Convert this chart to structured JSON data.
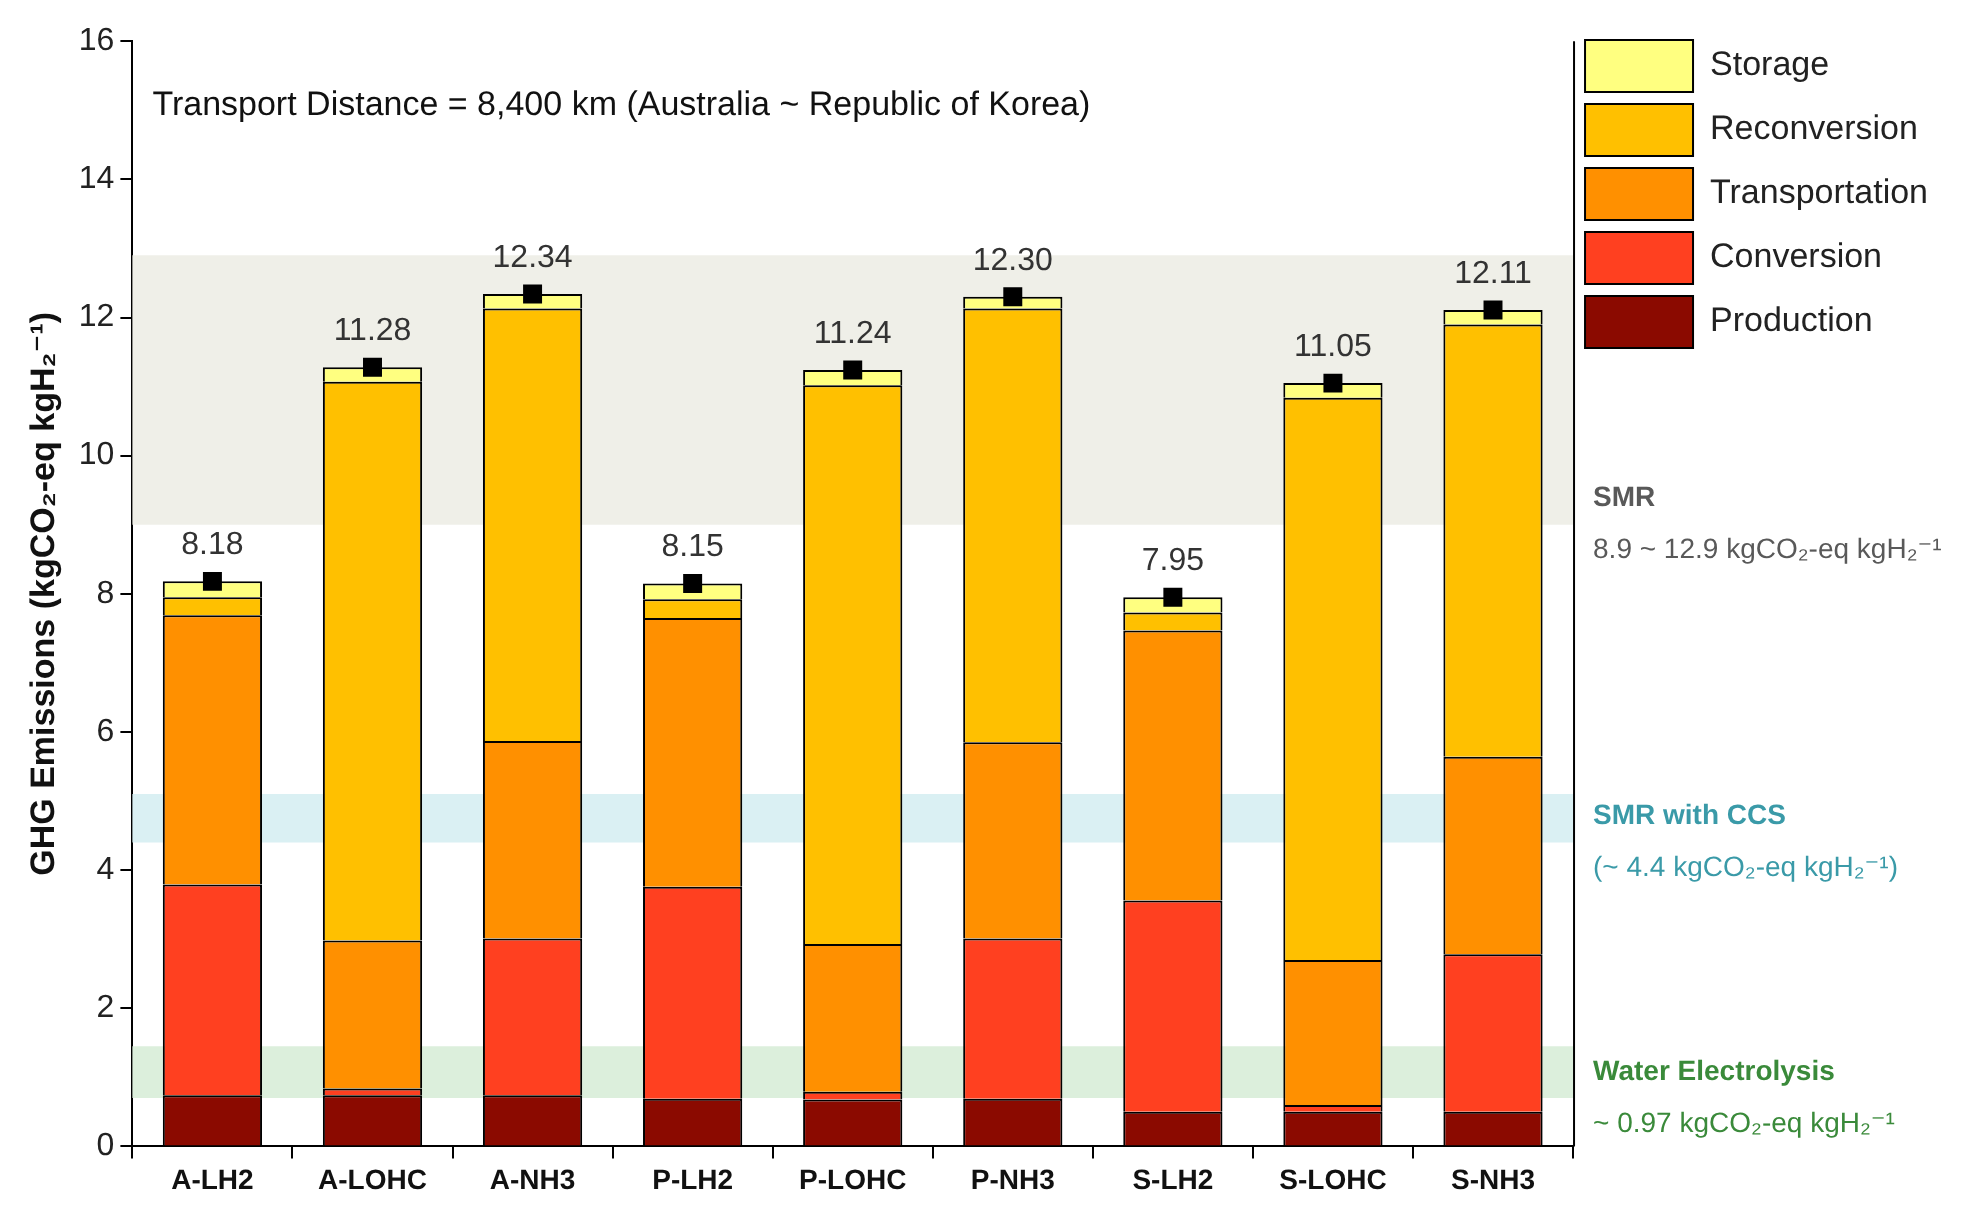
{
  "chart_data": {
    "type": "bar",
    "stacked": true,
    "ylabel": "GHG Emissions (kgCO₂-eq kgH₂⁻¹)",
    "categories": [
      "A-LH2",
      "A-LOHC",
      "A-NH3",
      "P-LH2",
      "P-LOHC",
      "P-NH3",
      "S-LH2",
      "S-LOHC",
      "S-NH3"
    ],
    "series": [
      {
        "name": "Production",
        "color": "#8b0a00",
        "values": [
          0.74,
          0.74,
          0.74,
          0.69,
          0.68,
          0.69,
          0.5,
          0.5,
          0.5
        ]
      },
      {
        "name": "Conversion",
        "color": "#ff4020",
        "values": [
          3.05,
          0.1,
          2.27,
          3.07,
          0.11,
          2.32,
          3.06,
          0.1,
          2.28
        ]
      },
      {
        "name": "Transportation",
        "color": "#ff9000",
        "values": [
          3.9,
          2.14,
          2.86,
          3.89,
          2.14,
          2.84,
          3.91,
          2.1,
          2.86
        ]
      },
      {
        "name": "Reconversion",
        "color": "#ffc000",
        "values": [
          0.26,
          8.09,
          6.26,
          0.27,
          8.09,
          6.28,
          0.26,
          8.14,
          6.26
        ]
      },
      {
        "name": "Storage",
        "color": "#ffff80",
        "values": [
          0.23,
          0.21,
          0.21,
          0.23,
          0.22,
          0.17,
          0.22,
          0.21,
          0.21
        ]
      },
      {
        "type": "scatter",
        "color": "#000000",
        "marker": "square",
        "x": [
          "A-LH2",
          "A-LOHC",
          "A-NH3",
          "P-LH2",
          "P-LOHC",
          "P-NH3",
          "S-LH2",
          "S-LOHC",
          "S-NH3"
        ],
        "values": [
          8.18,
          11.28,
          12.34,
          8.15,
          11.24,
          12.3,
          7.95,
          11.05,
          12.11
        ]
      }
    ],
    "totals": [
      "8.18",
      "11.28",
      "12.34",
      "8.15",
      "11.24",
      "12.30",
      "7.95",
      "11.05",
      "12.11"
    ],
    "ylim": [
      0,
      16
    ],
    "yticks": [
      0,
      2,
      4,
      6,
      8,
      10,
      12,
      14,
      16
    ],
    "grid": false,
    "legend": "top right",
    "bands": [
      {
        "axis": "y",
        "from": 9,
        "to": 12.9,
        "label": "SMR\n8.9 ~ 12.9 kgCO₂-eq kgH₂⁻¹",
        "color": "#efefe8"
      },
      {
        "axis": "y",
        "from": 4.4,
        "to": 5.1,
        "label": "SMR with CCS\n(~ 4.4 kgCO₂-eq kgH₂⁻¹)",
        "color": "#daf0f3"
      },
      {
        "axis": "y",
        "from": 0.7,
        "to": 1.45,
        "label": "Water Electrolysis\n~ 0.97 kgCO₂-eq kgH₂⁻¹",
        "color": "#dcefdc"
      }
    ],
    "annotations": [
      "Transport Distance = 8,400 km (Australia ~ Republic of Korea)"
    ]
  }
}
